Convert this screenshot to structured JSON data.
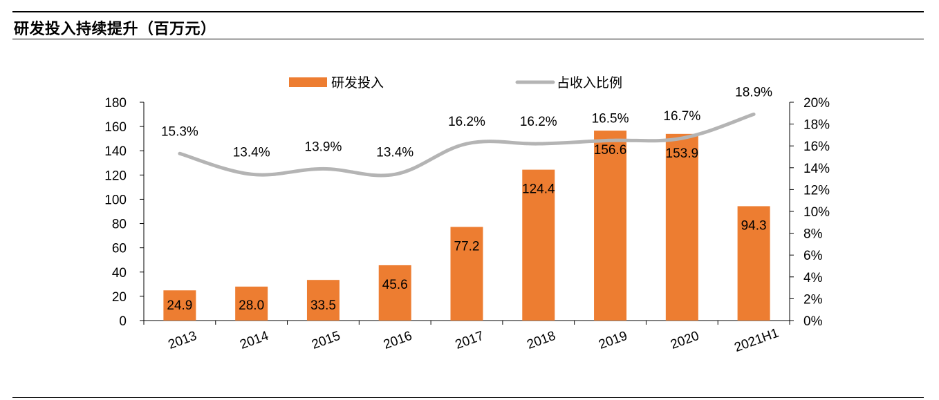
{
  "header": {
    "title": "研发投入持续提升（百万元）"
  },
  "colors": {
    "bar": "#ED7D31",
    "line": "#B4B4B4",
    "axis": "#000000"
  },
  "chart_data": {
    "type": "bar",
    "title": "研发投入持续提升（百万元）",
    "categories": [
      "2013",
      "2014",
      "2015",
      "2016",
      "2017",
      "2018",
      "2019",
      "2020",
      "2021H1"
    ],
    "series": [
      {
        "name": "研发投入",
        "type": "bar",
        "axis": "left",
        "values": [
          24.9,
          28.0,
          33.5,
          45.6,
          77.2,
          124.4,
          156.6,
          153.9,
          94.3
        ],
        "labels": [
          "24.9",
          "28.0",
          "33.5",
          "45.6",
          "77.2",
          "124.4",
          "156.6",
          "153.9",
          "94.3"
        ]
      },
      {
        "name": "占收入比例",
        "type": "line",
        "axis": "right",
        "values": [
          15.3,
          13.4,
          13.9,
          13.4,
          16.2,
          16.2,
          16.5,
          16.7,
          18.9
        ],
        "labels": [
          "15.3%",
          "13.4%",
          "13.9%",
          "13.4%",
          "16.2%",
          "16.2%",
          "16.5%",
          "16.7%",
          "18.9%"
        ]
      }
    ],
    "y_left": {
      "ylim": [
        0,
        180
      ],
      "ticks": [
        "0",
        "20",
        "40",
        "60",
        "80",
        "100",
        "120",
        "140",
        "160",
        "180"
      ]
    },
    "y_right": {
      "ylim": [
        0,
        20
      ],
      "ticks": [
        "0%",
        "2%",
        "4%",
        "6%",
        "8%",
        "10%",
        "12%",
        "14%",
        "16%",
        "18%",
        "20%"
      ]
    },
    "grid": false,
    "legend": "top-center"
  }
}
